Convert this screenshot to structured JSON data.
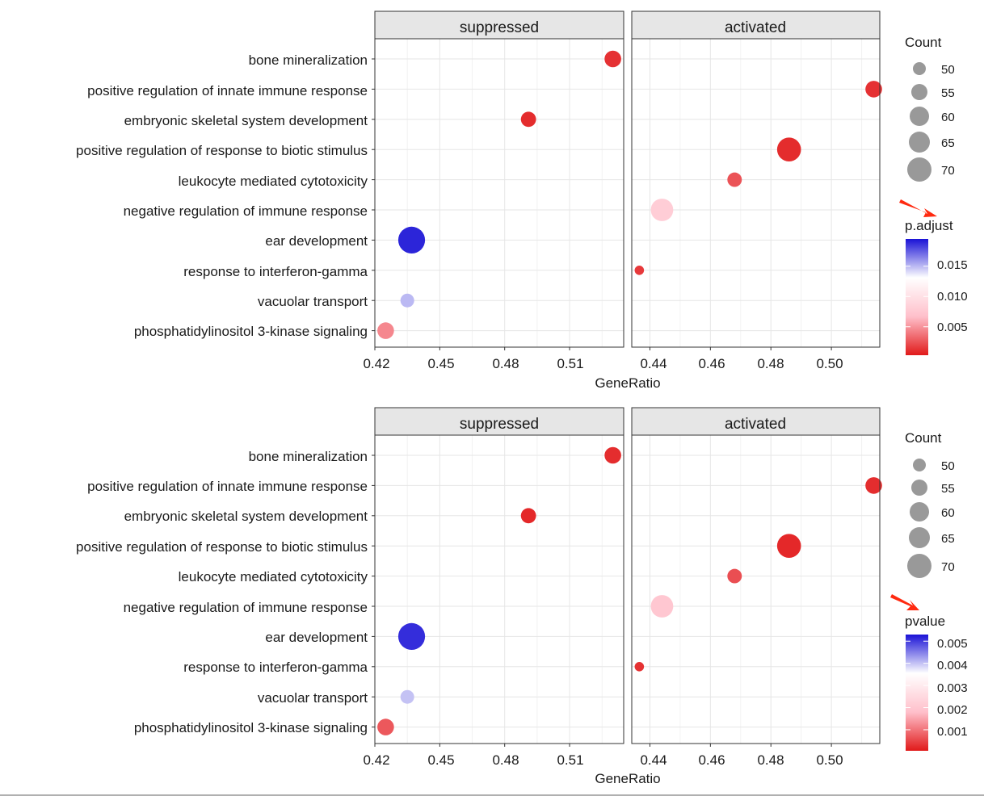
{
  "chart_data": [
    {
      "type": "scatter",
      "xlabel": "GeneRatio",
      "ylabel": "",
      "terms": [
        "bone mineralization",
        "positive regulation of innate immune response",
        "embryonic skeletal system development",
        "positive regulation of response to biotic stimulus",
        "leukocyte mediated cytotoxicity",
        "negative regulation of immune response",
        "ear development",
        "response to interferon-gamma",
        "vacuolar transport",
        "phosphatidylinositol 3-kinase signaling"
      ],
      "facets": [
        {
          "name": "suppressed",
          "xlim": [
            0.42,
            0.535
          ],
          "ticks": [
            0.42,
            0.45,
            0.48,
            0.51
          ],
          "tick_labels": [
            "0.42",
            "0.45",
            "0.48",
            "0.51"
          ],
          "points": [
            {
              "term": "bone mineralization",
              "x": 0.53,
              "count": 58,
              "color_value": 0.0012
            },
            {
              "term": "embryonic skeletal system development",
              "x": 0.491,
              "count": 56,
              "color_value": 0.001
            },
            {
              "term": "ear development",
              "x": 0.437,
              "count": 72,
              "color_value": 0.019
            },
            {
              "term": "vacuolar transport",
              "x": 0.435,
              "count": 54,
              "color_value": 0.015
            },
            {
              "term": "phosphatidylinositol 3-kinase signaling",
              "x": 0.425,
              "count": 58,
              "color_value": 0.0045
            }
          ]
        },
        {
          "name": "activated",
          "xlim": [
            0.434,
            0.516
          ],
          "ticks": [
            0.44,
            0.46,
            0.48,
            0.5
          ],
          "tick_labels": [
            "0.44",
            "0.46",
            "0.48",
            "0.50"
          ],
          "points": [
            {
              "term": "positive regulation of innate immune response",
              "x": 0.514,
              "count": 58,
              "color_value": 0.0012
            },
            {
              "term": "positive regulation of response to biotic stimulus",
              "x": 0.486,
              "count": 68,
              "color_value": 0.001
            },
            {
              "term": "leukocyte mediated cytotoxicity",
              "x": 0.468,
              "count": 55,
              "color_value": 0.0025
            },
            {
              "term": "negative regulation of immune response",
              "x": 0.444,
              "count": 66,
              "color_value": 0.008
            },
            {
              "term": "response to interferon-gamma",
              "x": 0.4365,
              "count": 48,
              "color_value": 0.0015
            }
          ]
        }
      ],
      "size_legend": {
        "title": "Count",
        "values": [
          50,
          55,
          60,
          65,
          70
        ]
      },
      "color_legend": {
        "title": "p.adjust",
        "range": [
          0.0003,
          0.0195
        ],
        "ticks": [
          0.005,
          0.01,
          0.015
        ],
        "tick_labels": [
          "0.005",
          "0.010",
          "0.015"
        ],
        "colors": [
          "#e11a1a",
          "#ffc0cb",
          "#ffffff",
          "#1a12d6"
        ]
      }
    },
    {
      "type": "scatter",
      "xlabel": "GeneRatio",
      "ylabel": "",
      "terms": [
        "bone mineralization",
        "positive regulation of innate immune response",
        "embryonic skeletal system development",
        "positive regulation of response to biotic stimulus",
        "leukocyte mediated cytotoxicity",
        "negative regulation of immune response",
        "ear development",
        "response to interferon-gamma",
        "vacuolar transport",
        "phosphatidylinositol 3-kinase signaling"
      ],
      "facets": [
        {
          "name": "suppressed",
          "xlim": [
            0.42,
            0.535
          ],
          "ticks": [
            0.42,
            0.45,
            0.48,
            0.51
          ],
          "tick_labels": [
            "0.42",
            "0.45",
            "0.48",
            "0.51"
          ],
          "points": [
            {
              "term": "bone mineralization",
              "x": 0.53,
              "count": 58,
              "color_value": 0.00025
            },
            {
              "term": "embryonic skeletal system development",
              "x": 0.491,
              "count": 56,
              "color_value": 0.0002
            },
            {
              "term": "ear development",
              "x": 0.437,
              "count": 72,
              "color_value": 0.0051
            },
            {
              "term": "vacuolar transport",
              "x": 0.435,
              "count": 54,
              "color_value": 0.004
            },
            {
              "term": "phosphatidylinositol 3-kinase signaling",
              "x": 0.425,
              "count": 58,
              "color_value": 0.0007
            }
          ]
        },
        {
          "name": "activated",
          "xlim": [
            0.434,
            0.516
          ],
          "ticks": [
            0.44,
            0.46,
            0.48,
            0.5
          ],
          "tick_labels": [
            "0.44",
            "0.46",
            "0.48",
            "0.50"
          ],
          "points": [
            {
              "term": "positive regulation of innate immune response",
              "x": 0.514,
              "count": 58,
              "color_value": 0.00025
            },
            {
              "term": "positive regulation of response to biotic stimulus",
              "x": 0.486,
              "count": 68,
              "color_value": 0.0002
            },
            {
              "term": "leukocyte mediated cytotoxicity",
              "x": 0.468,
              "count": 55,
              "color_value": 0.0006
            },
            {
              "term": "negative regulation of immune response",
              "x": 0.444,
              "count": 66,
              "color_value": 0.002
            },
            {
              "term": "response to interferon-gamma",
              "x": 0.4365,
              "count": 48,
              "color_value": 0.0003
            }
          ]
        }
      ],
      "size_legend": {
        "title": "Count",
        "values": [
          50,
          55,
          60,
          65,
          70
        ]
      },
      "color_legend": {
        "title": "pvalue",
        "range": [
          5e-05,
          0.0053
        ],
        "ticks": [
          0.001,
          0.002,
          0.003,
          0.004,
          0.005
        ],
        "tick_labels": [
          "0.001",
          "0.002",
          "0.003",
          "0.004",
          "0.005"
        ],
        "colors": [
          "#e11a1a",
          "#ffc0cb",
          "#ffffff",
          "#1a12d6"
        ]
      }
    }
  ],
  "annotations": {
    "arrow_color": "#ff2a10"
  }
}
